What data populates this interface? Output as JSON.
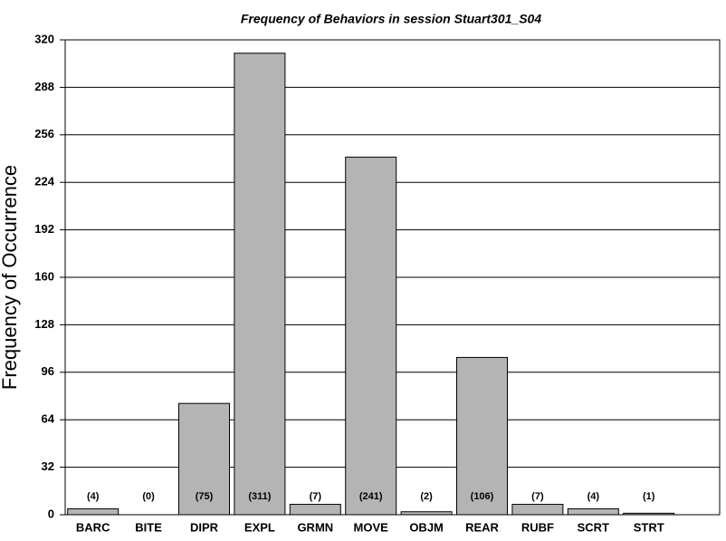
{
  "chart_data": {
    "type": "bar",
    "title": "Frequency of Behaviors in session Stuart301_S04",
    "y_label": "Frequency of Occurrence",
    "categories": [
      "BARC",
      "BITE",
      "DIPR",
      "EXPL",
      "GRMN",
      "MOVE",
      "OBJM",
      "REAR",
      "RUBF",
      "SCRT",
      "STRT"
    ],
    "values": [
      4,
      0,
      75,
      311,
      7,
      241,
      2,
      106,
      7,
      4,
      1
    ],
    "value_labels": [
      "(4)",
      "(0)",
      "(75)",
      "(311)",
      "(7)",
      "(241)",
      "(2)",
      "(106)",
      "(7)",
      "(4)",
      "(1)"
    ],
    "color": "#b4b4b4",
    "ylim": [
      0,
      320
    ],
    "yticks": [
      0,
      32,
      64,
      96,
      128,
      160,
      192,
      224,
      256,
      288,
      320
    ],
    "grid": true
  }
}
